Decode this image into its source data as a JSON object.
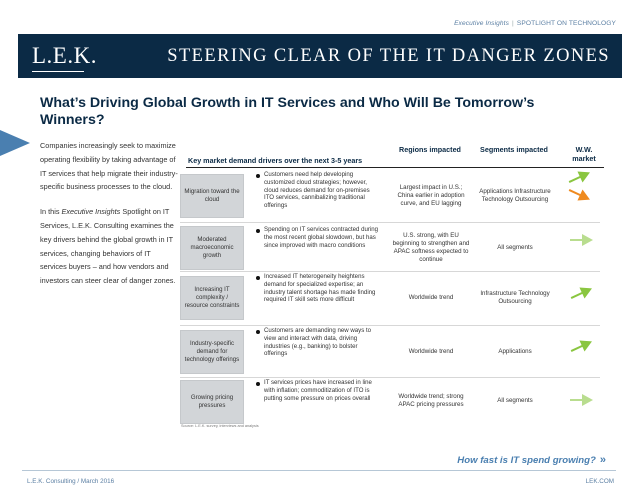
{
  "header": {
    "tag_series": "Executive Insights",
    "tag_separator": "|",
    "tag_topic": "SPOTLIGHT ON TECHNOLOGY",
    "logo": "L.E.K.",
    "banner_title": "STEERING CLEAR OF THE IT DANGER ZONES"
  },
  "main_title": "What’s Driving Global Growth in IT Services and Who Will Be Tomorrow’s Winners?",
  "intro": {
    "p1": "Companies increasingly seek to maximize operating flexibility by taking advantage of IT services that help migrate their industry-specific business processes to the cloud.",
    "p2_a": "In this ",
    "p2_em": "Executive Insights",
    "p2_b": " Spotlight on IT Services, L.E.K. Consulting examines the key drivers behind the global growth in IT services, changing behaviors of IT services buyers – and how vendors and investors can steer clear of danger zones."
  },
  "table": {
    "headers": {
      "drivers": "Key market demand drivers over the next 3-5 years",
      "regions": "Regions impacted",
      "segments": "Segments impacted",
      "ww": "W.W. market"
    },
    "rows": [
      {
        "driver": "Migration toward the cloud",
        "detail": "Customers need help developing customized cloud strategies; however, cloud reduces demand for on-premises ITO services, cannibalizing traditional offerings",
        "regions": "Largest impact in U.S.; China earlier in adoption curve, and EU lagging",
        "segments": "Applications Infrastructure Technology Outsourcing",
        "ww_icons": [
          "up-arrow-icon",
          "down-arrow-icon"
        ]
      },
      {
        "driver": "Moderated macroeconomic growth",
        "detail": "Spending on IT services contracted during the most recent global slowdown, but has since improved with macro conditions",
        "regions": "U.S. strong, with EU beginning to strengthen and APAC softness expected to continue",
        "segments": "All segments",
        "ww_icons": [
          "flat-arrow-icon"
        ]
      },
      {
        "driver": "Increasing IT complexity / resource constraints",
        "detail": "Increased IT heterogeneity heightens demand for specialized expertise; an industry talent shortage has made finding required IT skill sets more difficult",
        "regions": "Worldwide trend",
        "segments": "Infrastructure Technology Outsourcing",
        "ww_icons": [
          "up-arrow-icon"
        ]
      },
      {
        "driver": "Industry-specific demand for technology offerings",
        "detail": "Customers are demanding new ways to view and interact with data, driving industries (e.g., banking) to bolster offerings",
        "regions": "Worldwide trend",
        "segments": "Applications",
        "ww_icons": [
          "up-arrow-icon"
        ]
      },
      {
        "driver": "Growing pricing pressures",
        "detail": "IT services prices have increased in line with inflation; commoditization of ITO is putting some pressure on prices overall",
        "regions": "Worldwide trend; strong APAC pricing pressures",
        "segments": "All segments",
        "ww_icons": [
          "flat-arrow-icon"
        ]
      }
    ],
    "source": "Source: L.E.K. survey, interviews and analysis"
  },
  "colors": {
    "navy": "#0b2a45",
    "accent_blue": "#4a7fb0",
    "arrow_up_green": "#8ac640",
    "arrow_down_orange": "#ef8a1f",
    "arrow_flat_green": "#b9dd8f"
  },
  "cta": {
    "label": "How fast is IT spend growing?",
    "chevron": "»"
  },
  "footer": {
    "left": "L.E.K. Consulting / March 2016",
    "right": "LEK.COM"
  }
}
